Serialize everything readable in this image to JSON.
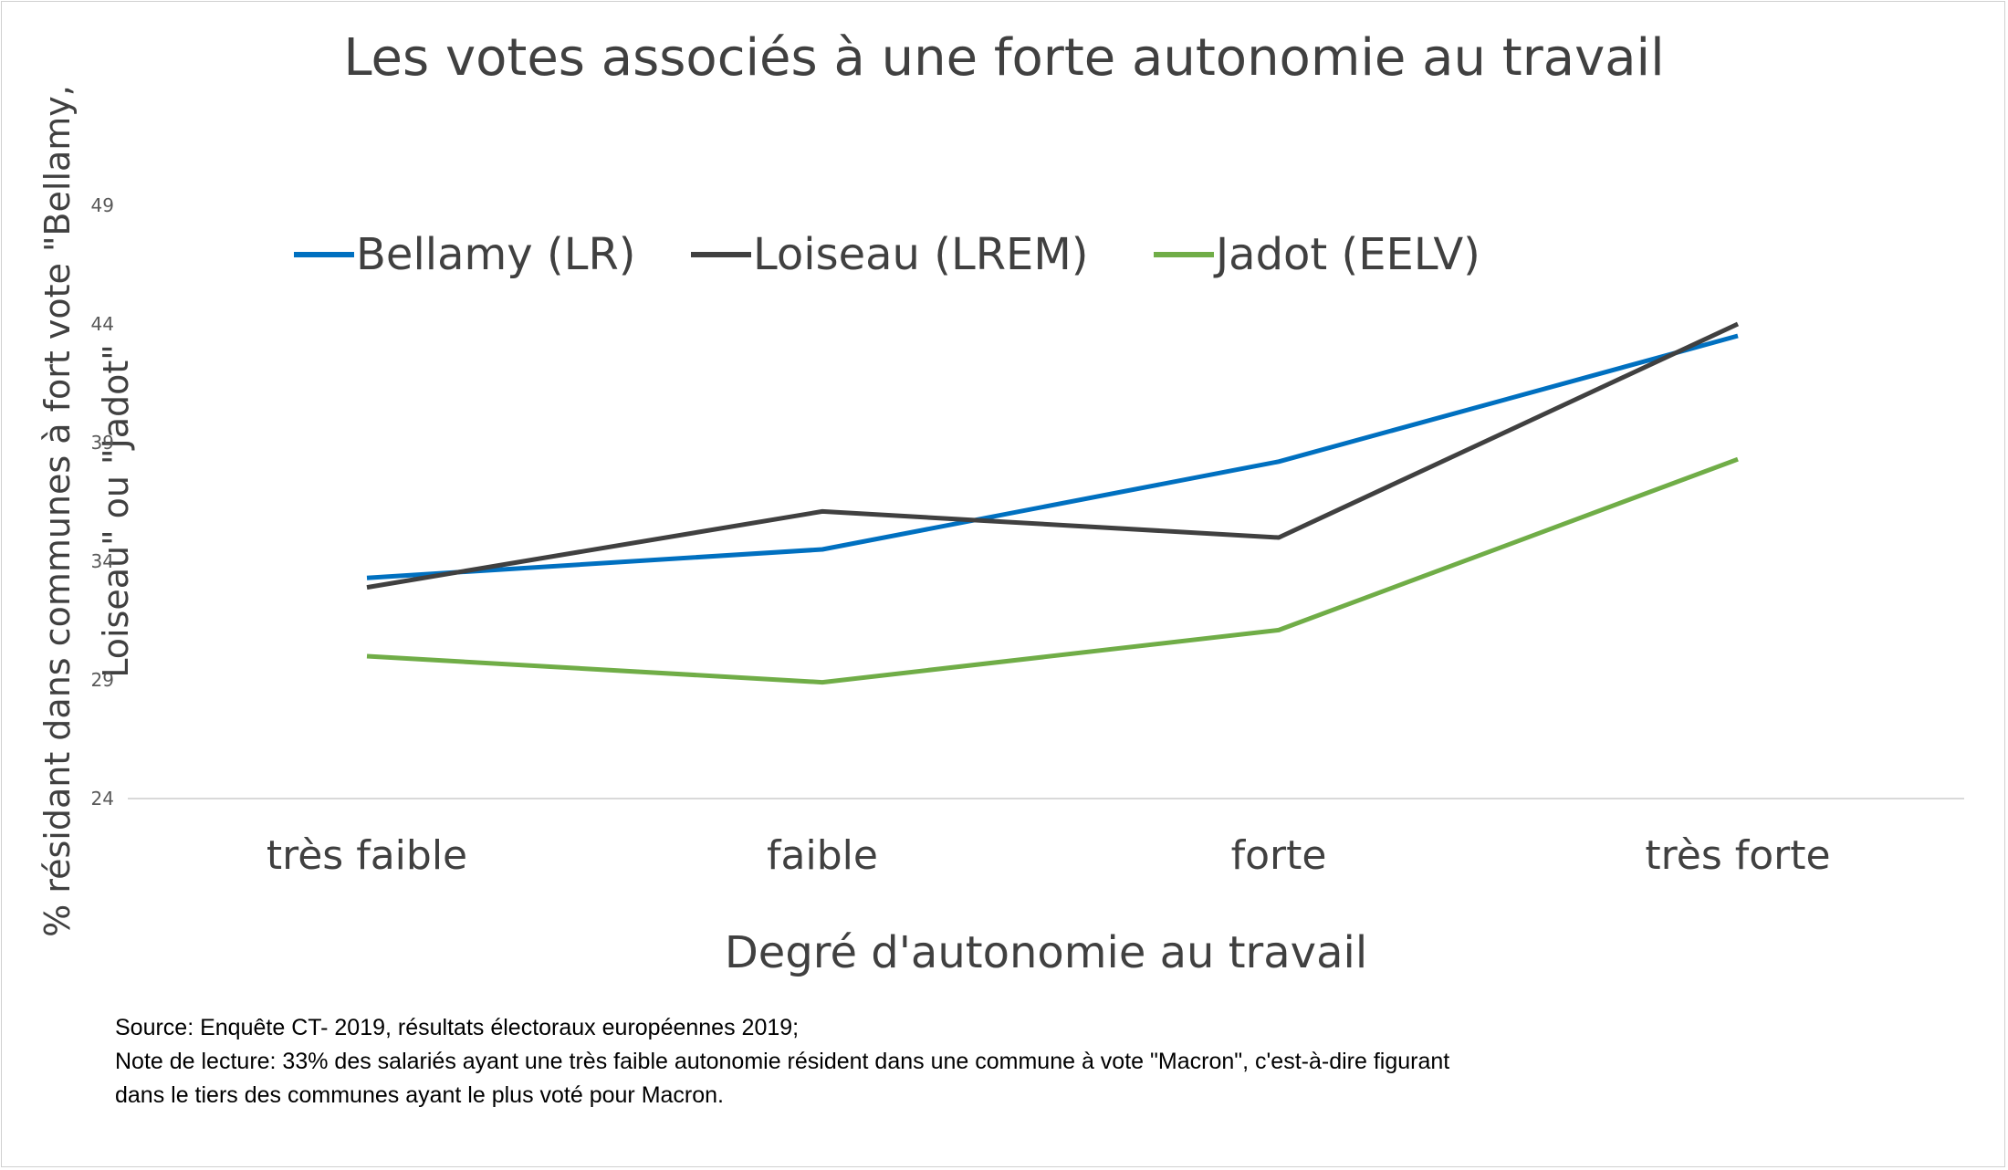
{
  "chart_data": {
    "type": "line",
    "title": "Les votes associés à une forte autonomie au travail",
    "xlabel": "Degré d'autonomie au travail",
    "ylabel_lines": [
      "% résidant dans communes à fort vote \"Bellamy,",
      "Loiseau\" ou \"Jadot\""
    ],
    "categories": [
      "très faible",
      "faible",
      "forte",
      "très forte"
    ],
    "yticks": [
      24,
      29,
      34,
      39,
      44,
      49
    ],
    "ylim": [
      24,
      49
    ],
    "grid": false,
    "legend_position": "top",
    "series": [
      {
        "name": "Bellamy (LR)",
        "color": "#0070C0",
        "values": [
          33.3,
          34.5,
          38.2,
          43.5
        ]
      },
      {
        "name": "Loiseau (LREM)",
        "color": "#404040",
        "values": [
          32.9,
          36.1,
          35.0,
          44.0
        ]
      },
      {
        "name": "Jadot (EELV)",
        "color": "#70AD47",
        "values": [
          30.0,
          28.9,
          31.1,
          38.3
        ]
      }
    ]
  },
  "notes": {
    "source": "Source: Enquête CT- 2019, résultats électoraux européennes 2019;",
    "note_line1": "Note de lecture: 33% des salariés ayant une très faible autonomie résident dans  une commune à vote \"Macron\", c'est-à-dire figurant",
    "note_line2": "dans le tiers des communes ayant le plus voté pour Macron."
  }
}
